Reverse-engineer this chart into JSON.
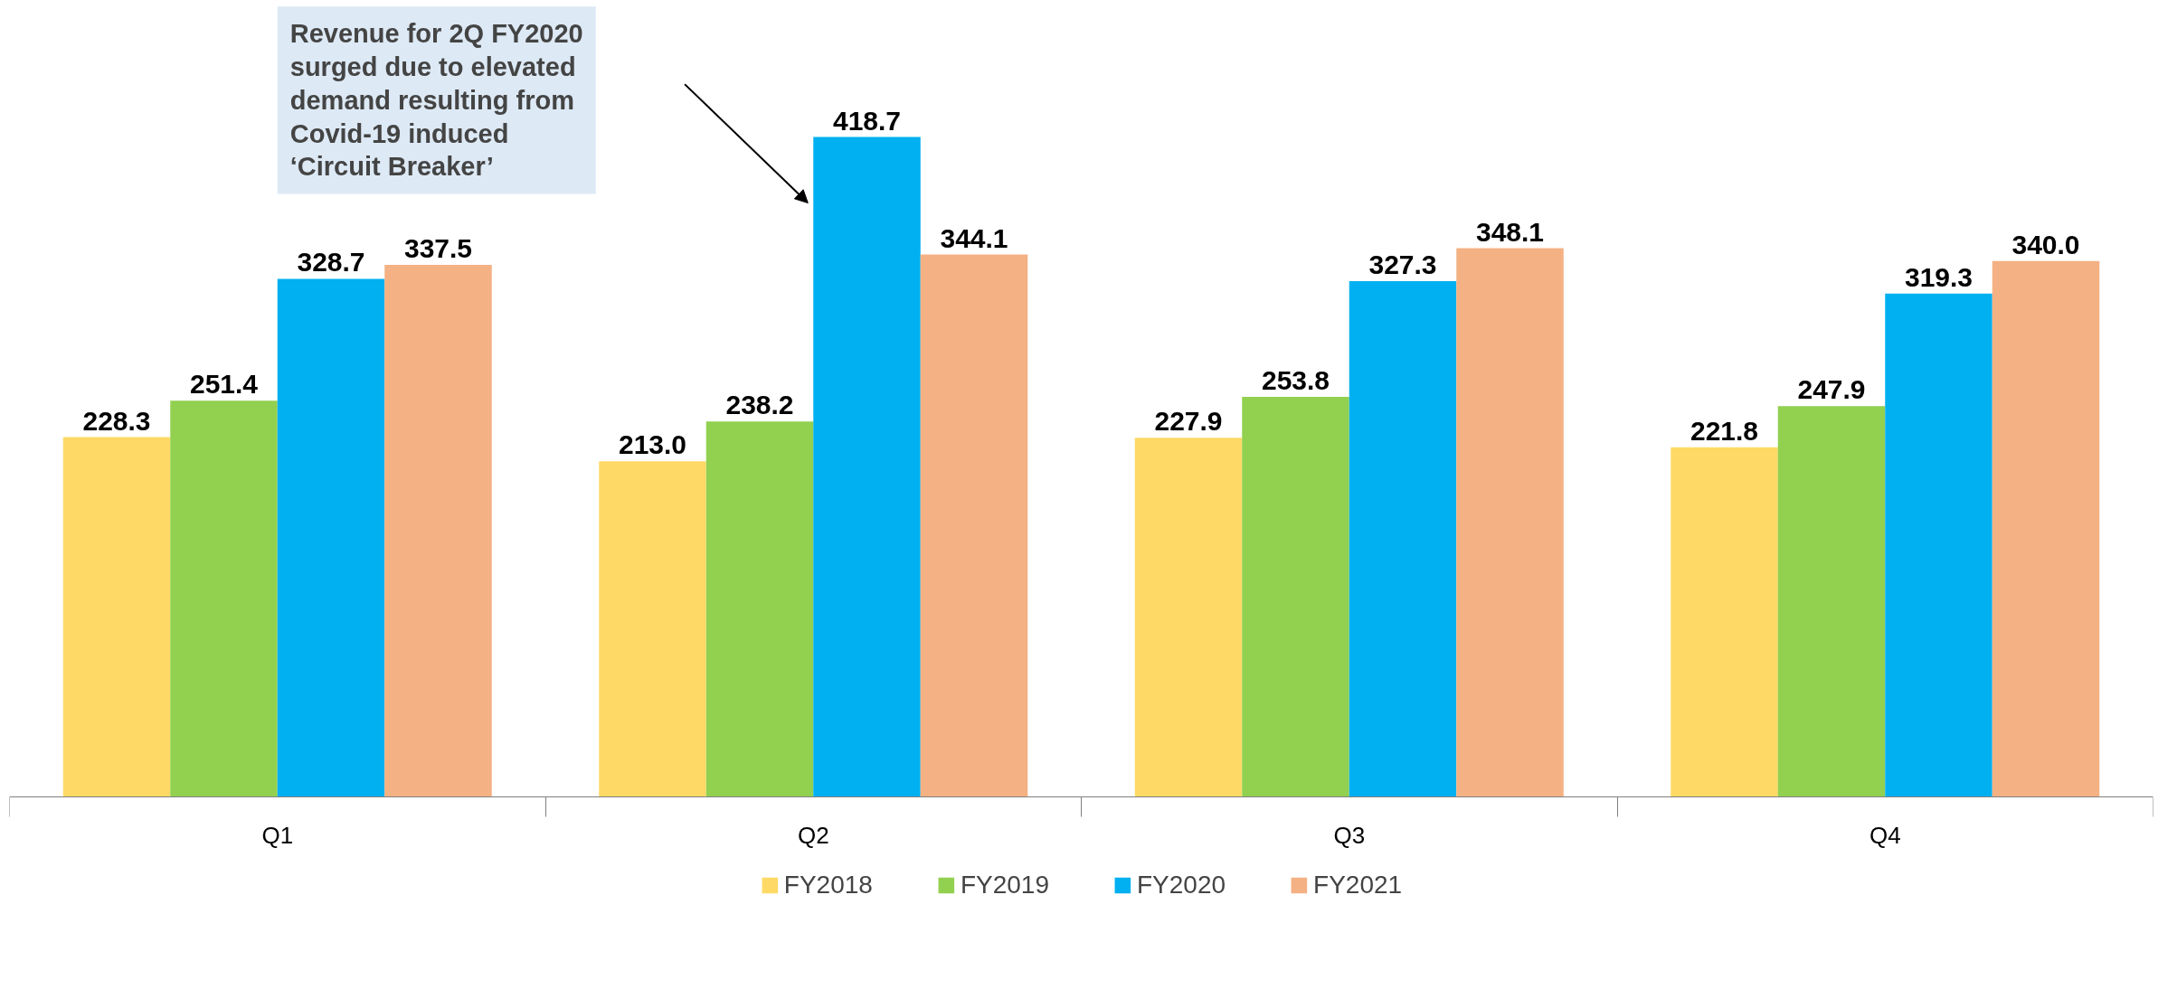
{
  "chart_data": {
    "type": "bar",
    "categories": [
      "Q1",
      "Q2",
      "Q3",
      "Q4"
    ],
    "series": [
      {
        "name": "FY2018",
        "color": "#ffd966",
        "values": [
          228.3,
          213.0,
          227.9,
          221.8
        ],
        "value_labels": [
          "228.3",
          "213.0",
          "227.9",
          "221.8"
        ]
      },
      {
        "name": "FY2019",
        "color": "#92d050",
        "values": [
          251.4,
          238.2,
          253.8,
          247.9
        ],
        "value_labels": [
          "251.4",
          "238.2",
          "253.8",
          "247.9"
        ]
      },
      {
        "name": "FY2020",
        "color": "#00b0f0",
        "values": [
          328.7,
          418.7,
          327.3,
          319.3
        ],
        "value_labels": [
          "328.7",
          "418.7",
          "327.3",
          "319.3"
        ]
      },
      {
        "name": "FY2021",
        "color": "#f4b183",
        "values": [
          337.5,
          344.1,
          348.1,
          340.0
        ],
        "value_labels": [
          "337.5",
          "344.1",
          "348.1",
          "340.0"
        ]
      }
    ],
    "legend": "bottom",
    "grid": false,
    "annotations": [
      "Revenue for 2Q FY2020 surged due to elevated demand resulting from Covid-19 induced ‘Circuit Breaker’"
    ]
  }
}
